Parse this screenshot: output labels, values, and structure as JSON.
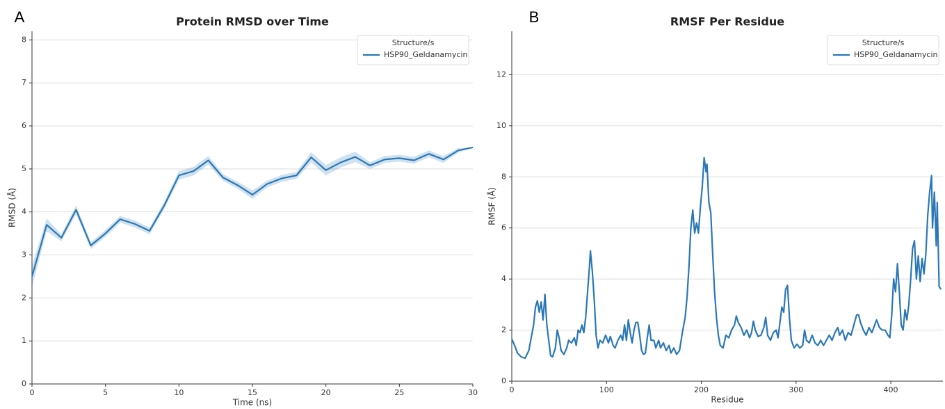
{
  "chart_data": [
    {
      "type": "line",
      "panel_label": "A",
      "title": "Protein RMSD over Time",
      "x_label": "Time (ns)",
      "y_label": "RMSD (Å)",
      "x": [
        0,
        1,
        2,
        3,
        4,
        5,
        6,
        7,
        8,
        9,
        10,
        11,
        12,
        13,
        14,
        15,
        16,
        17,
        18,
        19,
        20,
        21,
        22,
        23,
        24,
        25,
        26,
        27,
        28,
        29,
        30
      ],
      "series": [
        {
          "name": "HSP90_Geldanamycin",
          "color": "#2a78b6",
          "values": [
            2.5,
            3.7,
            3.4,
            4.05,
            3.22,
            3.5,
            3.83,
            3.72,
            3.56,
            4.15,
            4.85,
            4.95,
            5.2,
            4.8,
            4.62,
            4.4,
            4.65,
            4.78,
            4.85,
            5.27,
            4.97,
            5.15,
            5.28,
            5.08,
            5.22,
            5.25,
            5.2,
            5.35,
            5.22,
            5.43,
            5.5
          ],
          "ci_lower": [
            2.25,
            3.55,
            3.32,
            3.95,
            3.14,
            3.42,
            3.75,
            3.64,
            3.48,
            4.07,
            4.75,
            4.85,
            5.1,
            4.72,
            4.54,
            4.3,
            4.57,
            4.7,
            4.77,
            5.15,
            4.85,
            5.03,
            5.16,
            5.0,
            5.14,
            5.17,
            5.12,
            5.27,
            5.14,
            5.38,
            5.5
          ],
          "ci_upper": [
            2.75,
            3.85,
            3.48,
            4.15,
            3.3,
            3.58,
            3.91,
            3.8,
            3.64,
            4.23,
            4.95,
            5.05,
            5.3,
            4.88,
            4.7,
            4.5,
            4.73,
            4.86,
            4.93,
            5.39,
            5.09,
            5.27,
            5.4,
            5.16,
            5.3,
            5.33,
            5.28,
            5.43,
            5.3,
            5.48,
            5.5
          ]
        }
      ],
      "legend_title": "Structure/s",
      "legend": "upper right",
      "xlim": [
        0,
        30
      ],
      "xticks": [
        0,
        5,
        10,
        15,
        20,
        25,
        30
      ],
      "ylim": [
        0,
        8.2
      ],
      "yticks": [
        0,
        1,
        2,
        3,
        4,
        5,
        6,
        7,
        8
      ],
      "grid": true
    },
    {
      "type": "line",
      "panel_label": "B",
      "title": "RMSF Per Residue",
      "x_label": "Residue",
      "y_label": "RMSF (Å)",
      "x": [
        0,
        3,
        6,
        10,
        14,
        18,
        20,
        23,
        25,
        27,
        29,
        31,
        33,
        35,
        37,
        39,
        41,
        43,
        46,
        48,
        50,
        52,
        55,
        58,
        60,
        63,
        66,
        68,
        70,
        72,
        74,
        76,
        78,
        80,
        82,
        83,
        85,
        87,
        89,
        91,
        93,
        96,
        99,
        102,
        104,
        107,
        109,
        112,
        115,
        117,
        119,
        121,
        123,
        125,
        127,
        129,
        131,
        133,
        135,
        137,
        139,
        141,
        143,
        145,
        147,
        150,
        152,
        155,
        157,
        160,
        163,
        166,
        168,
        171,
        174,
        177,
        180,
        183,
        185,
        187,
        189,
        191,
        193,
        195,
        197,
        199,
        201,
        203,
        205,
        206,
        208,
        210,
        212,
        214,
        216,
        218,
        220,
        223,
        226,
        229,
        232,
        235,
        237,
        239,
        242,
        245,
        248,
        251,
        253,
        255,
        257,
        260,
        263,
        266,
        268,
        270,
        273,
        276,
        279,
        281,
        283,
        285,
        287,
        289,
        291,
        293,
        295,
        298,
        301,
        304,
        307,
        309,
        311,
        314,
        317,
        320,
        323,
        326,
        329,
        332,
        335,
        338,
        341,
        344,
        346,
        349,
        352,
        355,
        358,
        361,
        364,
        366,
        368,
        371,
        374,
        377,
        380,
        383,
        385,
        388,
        391,
        394,
        397,
        399,
        401,
        403,
        405,
        407,
        409,
        411,
        413,
        415,
        417,
        419,
        421,
        423,
        425,
        427,
        429,
        431,
        433,
        435,
        437,
        439,
        441,
        443,
        444,
        446,
        448,
        449,
        451,
        453
      ],
      "series": [
        {
          "name": "HSP90_Geldanamycin",
          "color": "#2a78b6",
          "values": [
            1.65,
            1.4,
            1.1,
            0.95,
            0.9,
            1.2,
            1.6,
            2.2,
            2.9,
            3.15,
            2.7,
            3.1,
            2.4,
            3.4,
            2.2,
            1.6,
            1.0,
            0.95,
            1.3,
            2.0,
            1.7,
            1.2,
            1.05,
            1.3,
            1.6,
            1.5,
            1.7,
            1.4,
            2.0,
            1.9,
            2.2,
            1.9,
            2.5,
            3.5,
            4.5,
            5.1,
            4.3,
            3.2,
            1.8,
            1.3,
            1.6,
            1.5,
            1.8,
            1.5,
            1.75,
            1.4,
            1.3,
            1.6,
            1.8,
            1.6,
            2.2,
            1.6,
            2.4,
            1.9,
            1.5,
            2.0,
            2.3,
            2.3,
            1.8,
            1.2,
            1.05,
            1.1,
            1.7,
            2.2,
            1.6,
            1.6,
            1.3,
            1.6,
            1.3,
            1.5,
            1.2,
            1.4,
            1.1,
            1.3,
            1.05,
            1.2,
            1.9,
            2.5,
            3.3,
            4.5,
            6.0,
            6.7,
            5.8,
            6.2,
            5.8,
            6.8,
            7.6,
            8.75,
            8.2,
            8.5,
            7.0,
            6.6,
            5.0,
            3.5,
            2.5,
            1.8,
            1.4,
            1.3,
            1.8,
            1.7,
            2.0,
            2.2,
            2.55,
            2.3,
            2.1,
            1.8,
            2.0,
            1.7,
            1.9,
            2.35,
            2.0,
            1.75,
            1.8,
            2.1,
            2.5,
            1.8,
            1.6,
            1.9,
            2.0,
            1.7,
            2.3,
            2.9,
            2.7,
            3.6,
            3.75,
            2.5,
            1.6,
            1.3,
            1.45,
            1.3,
            1.4,
            2.0,
            1.6,
            1.5,
            1.8,
            1.5,
            1.4,
            1.6,
            1.4,
            1.6,
            1.8,
            1.6,
            1.9,
            2.1,
            1.8,
            2.0,
            1.6,
            1.9,
            1.8,
            2.2,
            2.6,
            2.6,
            2.3,
            2.0,
            1.8,
            2.1,
            1.9,
            2.2,
            2.4,
            2.1,
            2.0,
            2.0,
            1.8,
            1.7,
            2.6,
            4.0,
            3.5,
            4.6,
            3.5,
            2.2,
            2.0,
            2.8,
            2.4,
            3.0,
            4.0,
            5.2,
            5.5,
            4.0,
            4.9,
            3.9,
            4.8,
            4.2,
            5.0,
            6.5,
            7.4,
            8.05,
            6.0,
            7.4,
            5.3,
            7.0,
            3.7,
            3.6
          ]
        }
      ],
      "legend_title": "Structure/s",
      "legend": "upper right",
      "xlim": [
        0,
        455
      ],
      "xticks": [
        0,
        100,
        200,
        300,
        400
      ],
      "ylim": [
        0,
        13.7
      ],
      "yticks": [
        0,
        2,
        4,
        6,
        8,
        10,
        12
      ],
      "grid": true
    }
  ]
}
